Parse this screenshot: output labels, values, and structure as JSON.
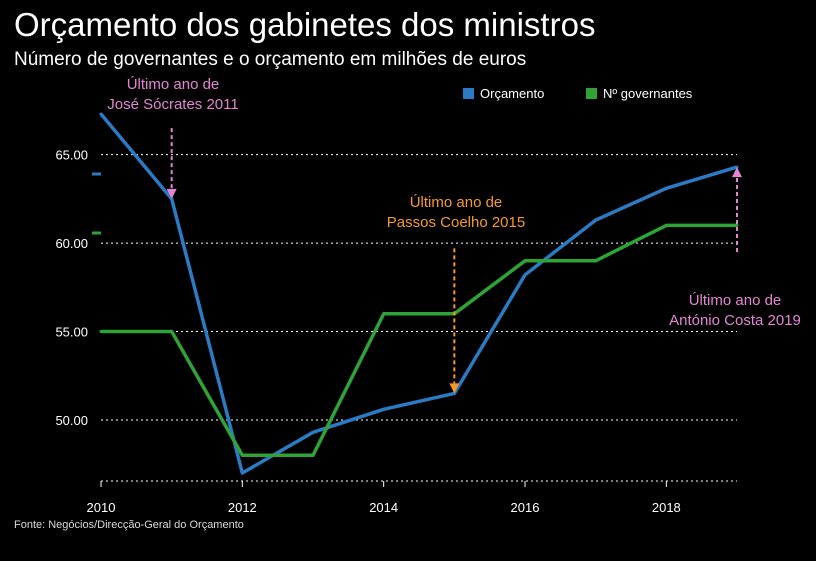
{
  "title": "Orçamento dos gabinetes dos ministros",
  "subtitle": "Número de governantes e o orçamento em milhões de euros",
  "source": "Fonte: Negócios/Direcção-Geral do Orçamento",
  "legend": {
    "budget": "Orçamento",
    "governants": "Nº governantes"
  },
  "annotations": {
    "socrates": {
      "line1": "Último ano de",
      "line2": "José Sócrates 2011"
    },
    "passos": {
      "line1": "Último ano de",
      "line2": "Passos Coelho 2015"
    },
    "costa": {
      "line1": "Último ano de",
      "line2": "António Costa 2019"
    }
  },
  "colors": {
    "budget": "#2b7bc4",
    "governants": "#2fa336",
    "socrates": "#e485d4",
    "passos": "#f59a2a",
    "costa": "#e485d4",
    "grid": "#ffffff",
    "axis_text": "#ffffff"
  },
  "chart_data": {
    "type": "line",
    "title": "Orçamento dos gabinetes dos ministros",
    "subtitle": "Número de governantes e o orçamento em milhões de euros",
    "x": [
      2010,
      2011,
      2012,
      2013,
      2014,
      2015,
      2016,
      2017,
      2018,
      2019
    ],
    "xlim": [
      2010,
      2019
    ],
    "x_ticks": [
      "2010",
      "2012",
      "2014",
      "2016",
      "2018"
    ],
    "x_tick_values": [
      2010,
      2012,
      2014,
      2016,
      2018
    ],
    "ylim": [
      47,
      66
    ],
    "y_ticks": [
      "50.00",
      "55.00",
      "60.00",
      "65.00"
    ],
    "y_tick_values": [
      50,
      55,
      60,
      65
    ],
    "grid": "horizontal dotted",
    "legend_position": "top-right",
    "series": [
      {
        "name": "Orçamento",
        "key": "budget",
        "values": [
          67.3,
          62.5,
          47.0,
          49.3,
          50.6,
          51.5,
          58.2,
          61.3,
          63.1,
          64.3
        ]
      },
      {
        "name": "Nº governantes",
        "key": "governants",
        "values": [
          55.0,
          55.0,
          48.0,
          48.0,
          56.0,
          56.0,
          59.0,
          59.0,
          61.0,
          61.0
        ]
      }
    ],
    "annotations": [
      {
        "key": "socrates",
        "x": 2011,
        "from": 66.5,
        "to": 62.5,
        "direction": "down"
      },
      {
        "key": "passos",
        "x": 2015,
        "from": 59.7,
        "to": 51.5,
        "direction": "down"
      },
      {
        "key": "costa",
        "x": 2019,
        "from": 59.5,
        "to": 64.3,
        "direction": "up"
      }
    ]
  }
}
